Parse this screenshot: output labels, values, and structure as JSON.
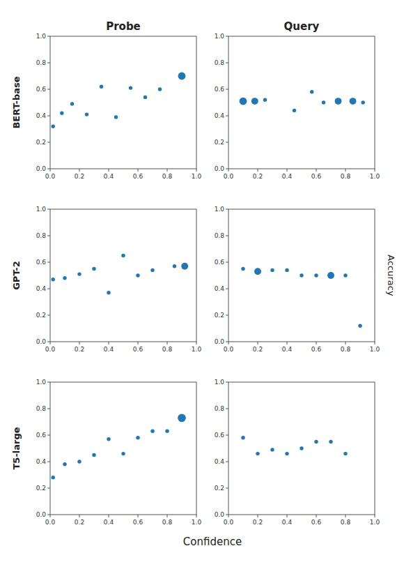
{
  "chart_data": [
    {
      "type": "scatter",
      "title": "Probe",
      "ylabel": "BERT-base",
      "x": [
        0.02,
        0.08,
        0.15,
        0.25,
        0.35,
        0.45,
        0.55,
        0.65,
        0.75,
        0.9
      ],
      "values": [
        0.32,
        0.42,
        0.49,
        0.41,
        0.62,
        0.39,
        0.61,
        0.54,
        0.6,
        0.7
      ],
      "sizes": [
        15,
        15,
        15,
        15,
        15,
        15,
        15,
        15,
        15,
        60
      ],
      "color": "#1f77b4",
      "xlim": [
        0.0,
        1.0
      ],
      "ylim": [
        0.0,
        1.0
      ],
      "xticks": [
        {
          "value": 0.0,
          "label": "0.0"
        },
        0.2,
        0.4,
        0.6,
        0.8,
        {
          "value": 1.0,
          "label": "1.0"
        }
      ],
      "yticks": [
        {
          "value": 0.0,
          "label": "0.0"
        },
        0.2,
        0.4,
        0.6,
        0.8,
        {
          "value": 1.0,
          "label": "1.0"
        }
      ]
    },
    {
      "type": "scatter",
      "title": "Query",
      "x": [
        0.1,
        0.18,
        0.25,
        0.45,
        0.57,
        0.65,
        0.75,
        0.85,
        0.92
      ],
      "values": [
        0.51,
        0.51,
        0.52,
        0.44,
        0.58,
        0.5,
        0.51,
        0.51,
        0.5
      ],
      "sizes": [
        60,
        50,
        15,
        15,
        15,
        15,
        50,
        50,
        15
      ],
      "color": "#1f77b4",
      "xlim": [
        0.0,
        1.0
      ],
      "ylim": [
        0.0,
        1.0
      ],
      "xticks": [
        {
          "value": 0.0,
          "label": "0.0"
        },
        0.2,
        0.4,
        0.6,
        0.8,
        {
          "value": 1.0,
          "label": "1.0"
        }
      ],
      "yticks": [
        {
          "value": 0.0,
          "label": "0.0"
        },
        0.2,
        0.4,
        0.6,
        0.8,
        {
          "value": 1.0,
          "label": "1.0"
        }
      ]
    },
    {
      "type": "scatter",
      "ylabel": "GPT-2",
      "x": [
        0.02,
        0.1,
        0.2,
        0.3,
        0.4,
        0.5,
        0.6,
        0.7,
        0.85,
        0.92
      ],
      "values": [
        0.47,
        0.48,
        0.51,
        0.55,
        0.37,
        0.65,
        0.5,
        0.54,
        0.57,
        0.57
      ],
      "sizes": [
        15,
        15,
        15,
        15,
        15,
        15,
        15,
        15,
        15,
        50
      ],
      "color": "#1f77b4",
      "xlim": [
        0.0,
        1.0
      ],
      "ylim": [
        0.0,
        1.0
      ],
      "xticks": [
        {
          "value": 0.0,
          "label": "0.0"
        },
        0.2,
        0.4,
        0.6,
        0.8,
        {
          "value": 1.0,
          "label": "1.0"
        }
      ],
      "yticks": [
        {
          "value": 0.0,
          "label": "0.0"
        },
        0.2,
        0.4,
        0.6,
        0.8,
        {
          "value": 1.0,
          "label": "1.0"
        }
      ]
    },
    {
      "type": "scatter",
      "ylabel": "Accuracy",
      "x": [
        0.1,
        0.2,
        0.3,
        0.4,
        0.5,
        0.6,
        0.7,
        0.8,
        0.9
      ],
      "values": [
        0.55,
        0.53,
        0.54,
        0.54,
        0.5,
        0.5,
        0.5,
        0.5,
        0.12
      ],
      "sizes": [
        15,
        50,
        15,
        15,
        15,
        15,
        50,
        15,
        15
      ],
      "color": "#1f77b4",
      "xlim": [
        0.0,
        1.0
      ],
      "ylim": [
        0.0,
        1.0
      ],
      "xticks": [
        {
          "value": 0.0,
          "label": "0.0"
        },
        0.2,
        0.4,
        0.6,
        0.8,
        {
          "value": 1.0,
          "label": "1.0"
        }
      ],
      "yticks": [
        {
          "value": 0.0,
          "label": "0.0"
        },
        0.2,
        0.4,
        0.6,
        0.8,
        {
          "value": 1.0,
          "label": "1.0"
        }
      ]
    },
    {
      "type": "scatter",
      "ylabel": "T5-large",
      "xlabel": "Confidence",
      "x": [
        0.02,
        0.1,
        0.2,
        0.3,
        0.4,
        0.5,
        0.6,
        0.7,
        0.8,
        0.9
      ],
      "values": [
        0.28,
        0.38,
        0.4,
        0.45,
        0.57,
        0.46,
        0.58,
        0.63,
        0.63,
        0.73
      ],
      "sizes": [
        15,
        15,
        15,
        15,
        15,
        15,
        15,
        15,
        15,
        70
      ],
      "color": "#1f77b4",
      "xlim": [
        0.0,
        1.0
      ],
      "ylim": [
        0.0,
        1.0
      ],
      "xticks": [
        {
          "value": 0.0,
          "label": "0.0"
        },
        0.2,
        0.4,
        0.6,
        0.8,
        {
          "value": 1.0,
          "label": "1.0"
        }
      ],
      "yticks": [
        {
          "value": 0.0,
          "label": "0.0"
        },
        0.2,
        0.4,
        0.6,
        0.8,
        {
          "value": 1.0,
          "label": "1.0"
        }
      ]
    },
    {
      "type": "scatter",
      "x": [
        0.1,
        0.2,
        0.3,
        0.4,
        0.5,
        0.6,
        0.7,
        0.8
      ],
      "values": [
        0.58,
        0.46,
        0.49,
        0.46,
        0.5,
        0.55,
        0.55,
        0.46
      ],
      "sizes": [
        15,
        15,
        15,
        15,
        15,
        15,
        15,
        15
      ],
      "color": "#1f77b4",
      "xlim": [
        0.0,
        1.0
      ],
      "ylim": [
        0.0,
        1.0
      ],
      "xticks": [
        {
          "value": 0.0,
          "label": "0.0"
        },
        0.2,
        0.4,
        0.6,
        0.8,
        {
          "value": 1.0,
          "label": "1.0"
        }
      ],
      "yticks": [
        {
          "value": 0.0,
          "label": "0.0"
        },
        0.2,
        0.4,
        0.6,
        0.8,
        {
          "value": 1.0,
          "label": "1.0"
        }
      ]
    }
  ]
}
